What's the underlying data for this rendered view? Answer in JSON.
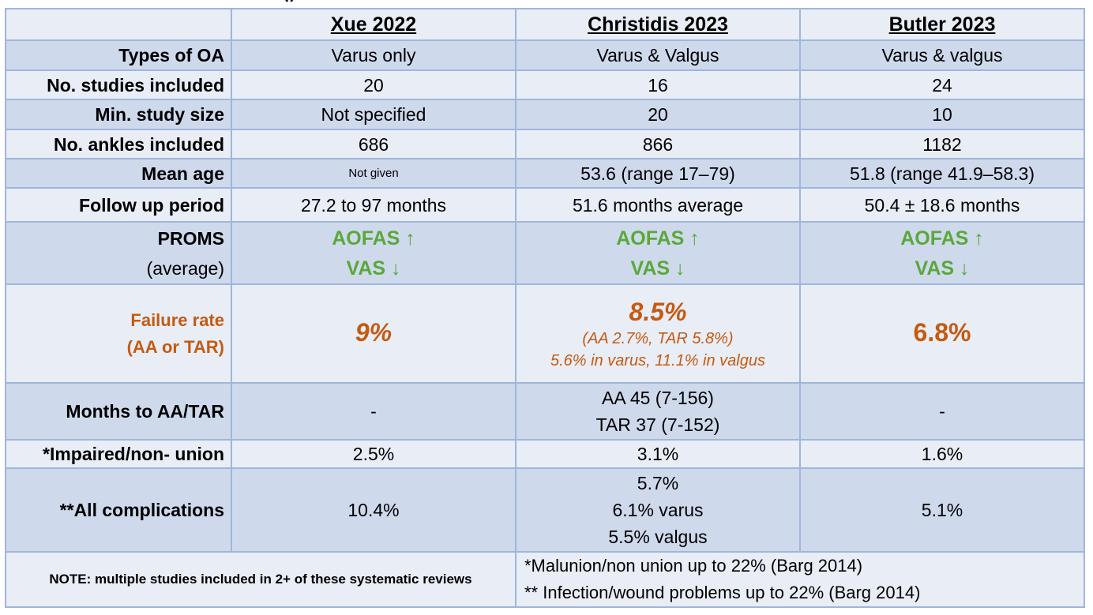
{
  "title_fragment": "y",
  "headers": [
    "Xue 2022",
    "Christidis 2023",
    "Butler 2023"
  ],
  "rows": {
    "types_of_oa": {
      "label": "Types of OA",
      "values": [
        "Varus only",
        "Varus & Valgus",
        "Varus & valgus"
      ]
    },
    "studies_included": {
      "label": "No. studies included",
      "values": [
        "20",
        "16",
        "24"
      ]
    },
    "min_study_size": {
      "label": "Min. study size",
      "values": [
        "Not specified",
        "20",
        "10"
      ]
    },
    "ankles_included": {
      "label": "No. ankles included",
      "values": [
        "686",
        "866",
        "1182"
      ]
    },
    "mean_age": {
      "label": "Mean age",
      "values": [
        "Not given",
        "53.6 (range 17–79)",
        "51.8 (range 41.9–58.3)"
      ]
    },
    "follow_up": {
      "label": "Follow up period",
      "values": [
        "27.2 to 97 months",
        "51.6 months average",
        "50.4 ± 18.6 months"
      ]
    },
    "proms": {
      "label": "PROMS",
      "sublabel": "(average)",
      "line1": "AOFAS ↑",
      "line2": "VAS ↓"
    },
    "failure_rate": {
      "label_line1": "Failure rate",
      "label_line2": "(AA or TAR)",
      "xue": "9%",
      "christidis_main": "8.5%",
      "christidis_sub1": "(AA 2.7%, TAR 5.8%)",
      "christidis_sub2": "5.6% in varus, 11.1% in valgus",
      "butler": "6.8%"
    },
    "months_to_aa": {
      "label": "Months to AA/TAR",
      "xue": "-",
      "christidis_line1": "AA 45 (7-156)",
      "christidis_line2": "TAR 37 (7-152)",
      "butler": "-"
    },
    "impaired_union": {
      "label": "*Impaired/non- union",
      "values": [
        "2.5%",
        "3.1%",
        "1.6%"
      ]
    },
    "all_complications": {
      "label": "**All complications",
      "xue": "10.4%",
      "christidis_line1": "5.7%",
      "christidis_line2": "6.1% varus",
      "christidis_line3": "5.5% valgus",
      "butler": "5.1%"
    }
  },
  "footer": {
    "note": "NOTE: multiple studies included in 2+ of these systematic reviews",
    "right_line1": "*Malunion/non union up to 22% (Barg 2014)",
    "right_line2": "** Infection/wound problems up to 22% (Barg 2014)"
  },
  "colors": {
    "row_light": "#e9edf5",
    "row_dark": "#cfd9ec",
    "border": "#9fb6dc",
    "green": "#5aa83a",
    "orange": "#c55a11"
  }
}
